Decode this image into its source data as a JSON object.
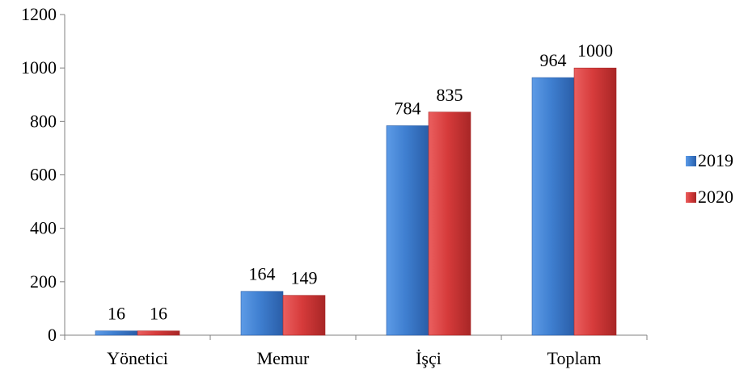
{
  "chart_data": {
    "type": "bar",
    "title": "",
    "xlabel": "",
    "ylabel": "",
    "categories": [
      "Yönetici",
      "Memur",
      "İşçi",
      "Toplam"
    ],
    "series": [
      {
        "name": "2019",
        "values": [
          16,
          164,
          784,
          964
        ],
        "color": "#3f7fd0"
      },
      {
        "name": "2020",
        "values": [
          16,
          149,
          835,
          1000
        ],
        "color": "#d63b3b"
      }
    ],
    "ylim": [
      0,
      1200
    ],
    "yticks": [
      0,
      200,
      400,
      600,
      800,
      1000,
      1200
    ],
    "grid": false,
    "legend": "right",
    "data_labels": true
  }
}
